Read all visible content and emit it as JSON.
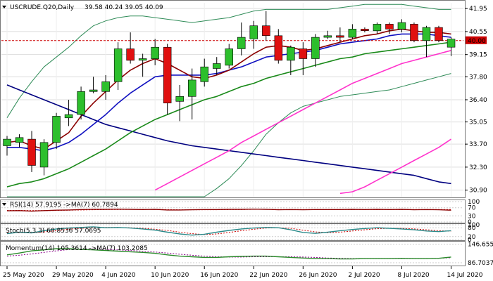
{
  "header": {
    "symbol": "USCRUDE.Q20,Daily",
    "ohlc": "39.58 40.24 39.05 40.09"
  },
  "indicators": {
    "rsi": "RSI(14) 57.9195 ->MA(7) 60.7894",
    "stoch": "Stoch(5,3,3) 60.8536 57.0695",
    "momentum": "Momentum(14) 105.3614 ->MA(7) 103.2085"
  },
  "colors": {
    "bull": "#2dbf2d",
    "bear": "#e01010",
    "ma_fast": "#8b0000",
    "ma_blue": "#1010c0",
    "ma_green": "#1a8a1a",
    "ma_magenta": "#ff33cc",
    "ma_long": "#000080",
    "bands": "#2e8b57",
    "price_line": "#cc0000",
    "grid": "#dddddd"
  },
  "chart_data": [
    {
      "type": "candlestick",
      "y_ticks": [
        41.95,
        40.55,
        39.15,
        37.8,
        36.4,
        35.05,
        33.7,
        32.3,
        30.9
      ],
      "ylim": [
        30.5,
        42.3
      ],
      "x_tick_labels": [
        "25 May 2020",
        "29 May 2020",
        "4 Jun 2020",
        "10 Jun 2020",
        "16 Jun 2020",
        "22 Jun 2020",
        "26 Jun 2020",
        "2 Jul 2020",
        "8 Jul 2020",
        "14 Jul 2020"
      ],
      "x_tick_index": [
        0,
        4,
        8,
        12,
        16,
        20,
        24,
        28,
        32,
        36
      ],
      "current_price": 40.0,
      "current_price_label": "40.00",
      "candles": [
        {
          "o": 33.6,
          "h": 34.2,
          "l": 33.0,
          "c": 34.0
        },
        {
          "o": 33.8,
          "h": 34.3,
          "l": 33.5,
          "c": 34.1
        },
        {
          "o": 34.0,
          "h": 34.5,
          "l": 32.0,
          "c": 32.4
        },
        {
          "o": 32.3,
          "h": 34.0,
          "l": 31.8,
          "c": 33.8
        },
        {
          "o": 33.8,
          "h": 35.6,
          "l": 33.4,
          "c": 35.4
        },
        {
          "o": 35.3,
          "h": 36.4,
          "l": 34.8,
          "c": 35.5
        },
        {
          "o": 35.5,
          "h": 37.2,
          "l": 35.2,
          "c": 36.9
        },
        {
          "o": 36.9,
          "h": 37.8,
          "l": 36.8,
          "c": 37.0
        },
        {
          "o": 36.9,
          "h": 37.9,
          "l": 36.4,
          "c": 37.5
        },
        {
          "o": 37.5,
          "h": 39.9,
          "l": 37.0,
          "c": 39.5
        },
        {
          "o": 39.5,
          "h": 40.5,
          "l": 38.6,
          "c": 38.8
        },
        {
          "o": 38.8,
          "h": 39.2,
          "l": 37.8,
          "c": 38.9
        },
        {
          "o": 38.9,
          "h": 40.1,
          "l": 38.5,
          "c": 39.6
        },
        {
          "o": 39.6,
          "h": 39.8,
          "l": 35.5,
          "c": 36.2
        },
        {
          "o": 36.3,
          "h": 37.3,
          "l": 35.1,
          "c": 36.6
        },
        {
          "o": 36.6,
          "h": 38.3,
          "l": 35.2,
          "c": 37.6
        },
        {
          "o": 37.5,
          "h": 38.9,
          "l": 37.2,
          "c": 38.4
        },
        {
          "o": 38.3,
          "h": 39.0,
          "l": 37.9,
          "c": 38.6
        },
        {
          "o": 38.5,
          "h": 39.8,
          "l": 38.3,
          "c": 39.5
        },
        {
          "o": 39.5,
          "h": 41.1,
          "l": 39.1,
          "c": 40.2
        },
        {
          "o": 40.1,
          "h": 41.2,
          "l": 39.5,
          "c": 40.9
        },
        {
          "o": 40.9,
          "h": 41.8,
          "l": 40.0,
          "c": 40.3
        },
        {
          "o": 40.3,
          "h": 40.7,
          "l": 38.6,
          "c": 38.8
        },
        {
          "o": 38.8,
          "h": 39.7,
          "l": 37.9,
          "c": 39.6
        },
        {
          "o": 39.5,
          "h": 39.9,
          "l": 37.9,
          "c": 38.9
        },
        {
          "o": 38.9,
          "h": 40.4,
          "l": 38.4,
          "c": 40.2
        },
        {
          "o": 40.2,
          "h": 40.6,
          "l": 40.1,
          "c": 40.3
        },
        {
          "o": 40.3,
          "h": 40.8,
          "l": 39.9,
          "c": 40.2
        },
        {
          "o": 40.2,
          "h": 41.0,
          "l": 40.1,
          "c": 40.7
        },
        {
          "o": 40.7,
          "h": 40.8,
          "l": 40.5,
          "c": 40.6
        },
        {
          "o": 40.6,
          "h": 41.1,
          "l": 40.4,
          "c": 41.0
        },
        {
          "o": 41.0,
          "h": 41.1,
          "l": 40.4,
          "c": 40.7
        },
        {
          "o": 40.7,
          "h": 41.3,
          "l": 40.5,
          "c": 41.1
        },
        {
          "o": 41.0,
          "h": 41.1,
          "l": 39.9,
          "c": 40.0
        },
        {
          "o": 40.0,
          "h": 40.9,
          "l": 39.0,
          "c": 40.8
        },
        {
          "o": 40.8,
          "h": 40.9,
          "l": 39.9,
          "c": 40.0
        },
        {
          "o": 39.6,
          "h": 40.2,
          "l": 39.05,
          "c": 40.09
        }
      ],
      "ma_fast": [
        33.8,
        33.9,
        33.6,
        33.4,
        33.9,
        34.4,
        35.4,
        36.2,
        36.9,
        37.6,
        38.2,
        38.6,
        38.9,
        38.6,
        38.2,
        37.8,
        37.7,
        37.9,
        38.2,
        38.7,
        39.2,
        39.6,
        39.7,
        39.6,
        39.4,
        39.5,
        39.7,
        39.9,
        40.1,
        40.3,
        40.4,
        40.6,
        40.7,
        40.6,
        40.5,
        40.5,
        40.4
      ],
      "ma_blue": [
        33.5,
        33.5,
        33.4,
        33.3,
        33.5,
        33.8,
        34.3,
        34.9,
        35.5,
        36.2,
        36.8,
        37.3,
        37.8,
        37.9,
        37.9,
        37.9,
        37.9,
        38.0,
        38.2,
        38.4,
        38.7,
        39.0,
        39.1,
        39.2,
        39.3,
        39.4,
        39.6,
        39.8,
        39.9,
        40.0,
        40.1,
        40.3,
        40.4,
        40.4,
        40.4,
        40.3,
        40.2
      ],
      "ma_green": [
        31.1,
        31.3,
        31.4,
        31.6,
        31.9,
        32.2,
        32.6,
        33.0,
        33.4,
        33.9,
        34.4,
        34.8,
        35.2,
        35.5,
        35.8,
        36.1,
        36.4,
        36.6,
        36.9,
        37.2,
        37.4,
        37.7,
        37.9,
        38.1,
        38.3,
        38.5,
        38.7,
        38.9,
        39.0,
        39.2,
        39.3,
        39.4,
        39.5,
        39.6,
        39.7,
        39.8,
        39.9
      ],
      "ma_magenta_start": 12,
      "ma_magenta": [
        30.9,
        31.3,
        31.7,
        32.1,
        32.5,
        32.9,
        33.3,
        33.8,
        34.2,
        34.6,
        35.0,
        35.4,
        35.8,
        36.2,
        36.6,
        37.0,
        37.4,
        37.7,
        38.0,
        38.3,
        38.6,
        38.8,
        39.0,
        39.2,
        39.4
      ],
      "ma_long": [
        37.3,
        37.0,
        36.7,
        36.4,
        36.1,
        35.8,
        35.5,
        35.2,
        34.9,
        34.7,
        34.5,
        34.3,
        34.1,
        33.9,
        33.75,
        33.6,
        33.5,
        33.4,
        33.3,
        33.2,
        33.1,
        33.0,
        32.9,
        32.8,
        32.7,
        32.6,
        32.5,
        32.4,
        32.3,
        32.2,
        32.1,
        32.0,
        31.9,
        31.8,
        31.6,
        31.4,
        31.3
      ],
      "magenta_short_start": 27,
      "magenta_short": [
        30.7,
        30.8,
        31.1,
        31.5,
        31.9,
        32.3,
        32.7,
        33.1,
        33.5,
        34.0
      ],
      "band_upper": [
        35.3,
        36.5,
        37.5,
        38.4,
        39.0,
        39.6,
        40.3,
        40.9,
        41.2,
        41.4,
        41.5,
        41.5,
        41.4,
        41.3,
        41.2,
        41.1,
        41.2,
        41.3,
        41.4,
        41.6,
        41.8,
        41.9,
        41.9,
        41.9,
        41.9,
        41.9,
        41.9,
        42.0,
        42.1,
        42.2,
        42.2,
        42.2,
        42.2,
        42.1,
        42.0,
        41.9,
        41.9
      ],
      "band_lower": [
        30.5,
        30.5,
        30.5,
        30.5,
        30.5,
        30.5,
        30.5,
        30.5,
        30.5,
        30.5,
        30.5,
        30.5,
        30.5,
        30.5,
        30.5,
        30.5,
        30.5,
        31.0,
        31.6,
        32.4,
        33.3,
        34.3,
        35.0,
        35.6,
        36.0,
        36.2,
        36.4,
        36.6,
        36.7,
        36.8,
        36.9,
        37.0,
        37.2,
        37.4,
        37.6,
        37.8,
        38.0
      ],
      "title": ""
    },
    {
      "type": "line",
      "name": "RSI",
      "y_ticks": [
        100,
        70,
        30,
        0
      ],
      "ylim": [
        0,
        100
      ],
      "values": [
        55,
        56,
        53,
        56,
        58,
        59,
        61,
        62,
        62,
        63,
        62,
        61,
        62,
        59,
        59,
        60,
        61,
        61,
        62,
        62,
        63,
        62,
        60,
        61,
        60,
        61,
        61,
        61,
        62,
        61,
        62,
        61,
        62,
        60,
        61,
        60,
        58
      ],
      "ma": [
        57,
        57,
        56,
        56,
        57,
        58,
        59,
        60,
        61,
        61,
        62,
        62,
        62,
        61,
        60,
        60,
        60,
        60,
        61,
        61,
        62,
        62,
        61,
        61,
        61,
        61,
        61,
        61,
        61,
        61,
        61,
        61,
        61,
        61,
        61,
        61,
        61
      ]
    },
    {
      "type": "line",
      "name": "Stochastic",
      "y_ticks": [
        100,
        80,
        20,
        0
      ],
      "ylim": [
        0,
        100
      ],
      "values": [
        40,
        50,
        45,
        60,
        72,
        78,
        82,
        86,
        80,
        82,
        78,
        72,
        64,
        50,
        38,
        30,
        36,
        50,
        62,
        72,
        78,
        82,
        80,
        66,
        48,
        42,
        50,
        60,
        68,
        75,
        80,
        76,
        72,
        66,
        58,
        54,
        60
      ],
      "signal": [
        45,
        46,
        47,
        52,
        60,
        70,
        76,
        82,
        82,
        82,
        80,
        76,
        70,
        62,
        50,
        40,
        34,
        38,
        48,
        60,
        70,
        78,
        80,
        76,
        64,
        52,
        46,
        50,
        58,
        66,
        74,
        76,
        76,
        72,
        66,
        60,
        57
      ]
    },
    {
      "type": "line",
      "name": "Momentum",
      "y_ticks": [
        146.655,
        86.7037
      ],
      "ylim": [
        80,
        150
      ],
      "values": [
        112,
        118,
        125,
        128,
        132,
        132,
        130,
        128,
        126,
        124,
        122,
        120,
        117,
        112,
        108,
        106,
        104,
        104,
        106,
        107,
        108,
        108,
        106,
        104,
        102,
        100,
        100,
        99,
        99,
        100,
        100,
        100,
        101,
        100,
        100,
        101,
        105
      ],
      "ma": [
        108,
        111,
        115,
        120,
        125,
        129,
        131,
        131,
        130,
        128,
        126,
        124,
        121,
        118,
        114,
        111,
        108,
        106,
        105,
        105,
        106,
        106,
        106,
        106,
        105,
        104,
        102,
        101,
        100,
        100,
        100,
        100,
        100,
        100,
        100,
        101,
        103
      ]
    }
  ]
}
